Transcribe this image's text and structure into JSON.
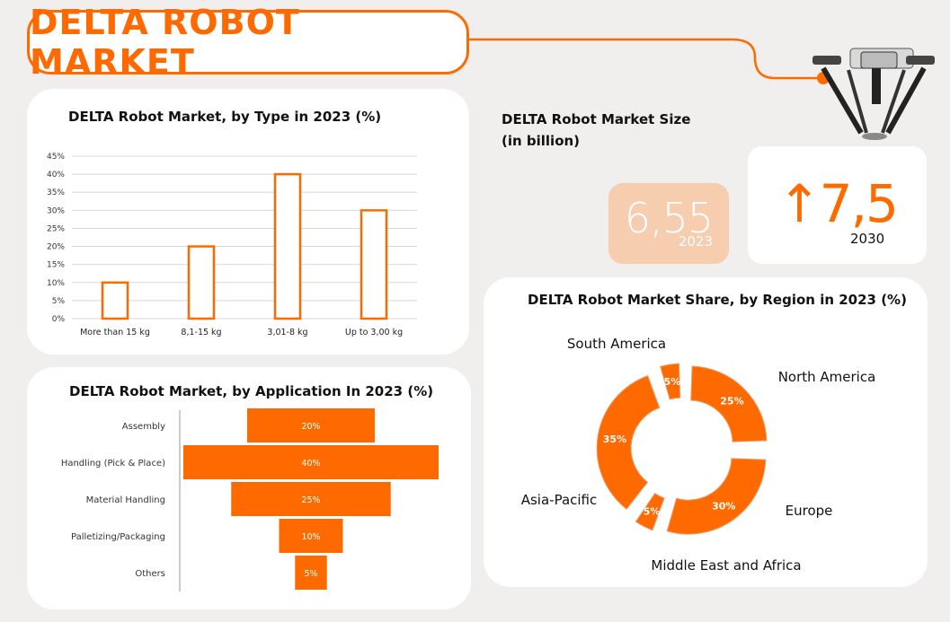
{
  "header": {
    "title": "DELTA ROBOT MARKET"
  },
  "market_size": {
    "title_line1": "DELTA Robot Market Size",
    "title_line2": "(in billion)",
    "value_2023": "6,55",
    "year_2023": "2023",
    "value_2030": "↑7,5",
    "year_2030": "2030"
  },
  "colors": {
    "accent": "#ff6a00",
    "light_accent": "#f7cdb0",
    "background": "#f1eeee",
    "card": "#ffffff"
  },
  "chart_data": [
    {
      "type": "bar",
      "title": "DELTA Robot Market, by Type in 2023 (%)",
      "categories": [
        "More than 15 kg",
        "8,1-15 kg",
        "3,01-8 kg",
        "Up to 3,00 kg"
      ],
      "values": [
        10,
        20,
        40,
        30
      ],
      "ylim": [
        0,
        45
      ],
      "yticks": [
        "0%",
        "5%",
        "10%",
        "15%",
        "20%",
        "25%",
        "30%",
        "35%",
        "40%",
        "45%"
      ],
      "grid": true
    },
    {
      "type": "bar",
      "orientation": "horizontal",
      "title": "DELTA Robot Market, by Application In 2023 (%)",
      "categories": [
        "Assembly",
        "Handling (Pick & Place)",
        "Material Handling",
        "Palletizing/Packaging",
        "Others"
      ],
      "values": [
        20,
        40,
        25,
        10,
        5
      ],
      "labels": [
        "20%",
        "40%",
        "25%",
        "10%",
        "5%"
      ]
    },
    {
      "type": "pie",
      "title": "DELTA Robot Market Share, by Region in 2023 (%)",
      "categories": [
        "North America",
        "Europe",
        "Middle East and Africa",
        "Asia-Pacific",
        "South America"
      ],
      "values": [
        25,
        30,
        5,
        35,
        5
      ],
      "labels": [
        "25%",
        "30%",
        "5%",
        "35%",
        "5%"
      ]
    }
  ]
}
